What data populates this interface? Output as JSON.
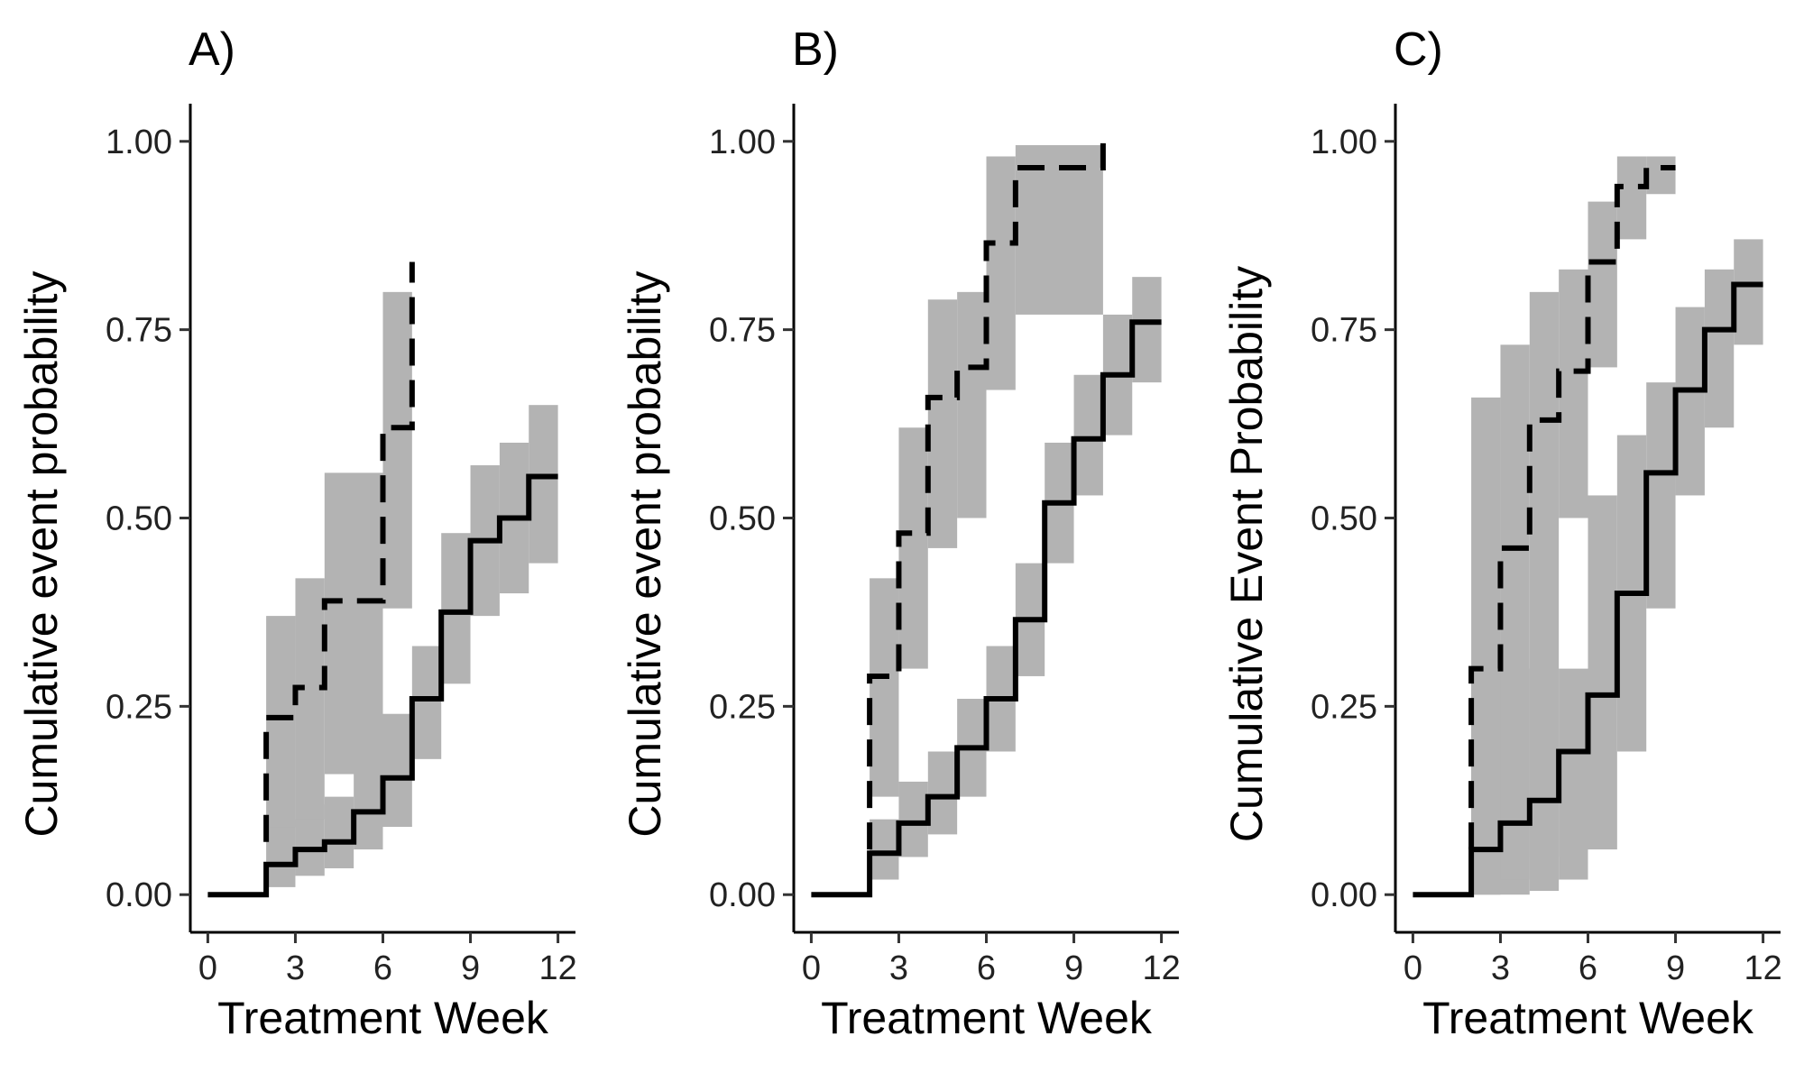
{
  "chart_data": [
    {
      "type": "step",
      "title": "A)",
      "x_label": "Treatment Week",
      "y_label": "Cumulative event probability",
      "xlim": [
        -0.6,
        12.6
      ],
      "ylim": [
        -0.05,
        1.05
      ],
      "xticks": [
        0,
        3,
        6,
        9,
        12
      ],
      "yticks": [
        {
          "value": 0,
          "label": "0.00"
        },
        {
          "value": 0.25,
          "label": "0.25"
        },
        {
          "value": 0.5,
          "label": "0.50"
        },
        {
          "value": 0.75,
          "label": "0.75"
        },
        {
          "value": 1,
          "label": "1.00"
        }
      ],
      "band_color": "#b3b3b3",
      "series": [
        {
          "color": "#000000",
          "linestyle": "solid",
          "x": [
            0,
            2,
            3,
            4,
            5,
            6,
            7,
            8,
            9,
            10,
            11,
            12
          ],
          "values": [
            0,
            0.04,
            0.06,
            0.07,
            0.11,
            0.155,
            0.26,
            0.375,
            0.47,
            0.5,
            0.555,
            0.555
          ],
          "lower": [
            0,
            0.01,
            0.025,
            0.035,
            0.06,
            0.09,
            0.18,
            0.28,
            0.37,
            0.4,
            0.44,
            0.44
          ],
          "upper": [
            0,
            0.1,
            0.12,
            0.13,
            0.18,
            0.24,
            0.33,
            0.48,
            0.57,
            0.6,
            0.65,
            0.65
          ]
        },
        {
          "color": "#000000",
          "linestyle": "dashed",
          "x": [
            2,
            2,
            3,
            4,
            6,
            7
          ],
          "values": [
            0.07,
            0.235,
            0.275,
            0.39,
            0.62,
            0.84
          ],
          "lower": [
            null,
            0.09,
            0.1,
            0.16,
            0.38,
            null
          ],
          "upper": [
            null,
            0.37,
            0.42,
            0.56,
            0.8,
            null
          ]
        }
      ]
    },
    {
      "type": "step",
      "title": "B)",
      "x_label": "Treatment Week",
      "y_label": "Cumulative event probability",
      "xlim": [
        -0.6,
        12.6
      ],
      "ylim": [
        -0.05,
        1.05
      ],
      "xticks": [
        0,
        3,
        6,
        9,
        12
      ],
      "yticks": [
        {
          "value": 0,
          "label": "0.00"
        },
        {
          "value": 0.25,
          "label": "0.25"
        },
        {
          "value": 0.5,
          "label": "0.50"
        },
        {
          "value": 0.75,
          "label": "0.75"
        },
        {
          "value": 1,
          "label": "1.00"
        }
      ],
      "band_color": "#b3b3b3",
      "series": [
        {
          "color": "#000000",
          "linestyle": "solid",
          "x": [
            0,
            2,
            3,
            4,
            5,
            6,
            7,
            8,
            9,
            10,
            11,
            12
          ],
          "values": [
            0,
            0.055,
            0.095,
            0.13,
            0.195,
            0.26,
            0.365,
            0.52,
            0.605,
            0.69,
            0.76,
            0.76
          ],
          "lower": [
            0,
            0.02,
            0.05,
            0.08,
            0.13,
            0.19,
            0.29,
            0.44,
            0.53,
            0.61,
            0.68,
            0.68
          ],
          "upper": [
            0,
            0.1,
            0.15,
            0.19,
            0.26,
            0.33,
            0.44,
            0.6,
            0.69,
            0.77,
            0.82,
            0.82
          ]
        },
        {
          "color": "#000000",
          "linestyle": "dashed",
          "x": [
            2,
            2,
            3,
            4,
            5,
            6,
            7,
            10
          ],
          "values": [
            0.06,
            0.29,
            0.48,
            0.66,
            0.7,
            0.865,
            0.965,
            1
          ],
          "lower": [
            null,
            0.13,
            0.3,
            0.46,
            0.5,
            0.67,
            0.77,
            null
          ],
          "upper": [
            null,
            0.42,
            0.62,
            0.79,
            0.8,
            0.98,
            0.995,
            null
          ]
        }
      ]
    },
    {
      "type": "step",
      "title": "C)",
      "x_label": "Treatment Week",
      "y_label": "Cumulative Event Probability",
      "xlim": [
        -0.6,
        12.6
      ],
      "ylim": [
        -0.05,
        1.05
      ],
      "xticks": [
        0,
        3,
        6,
        9,
        12
      ],
      "yticks": [
        {
          "value": 0,
          "label": "0.00"
        },
        {
          "value": 0.25,
          "label": "0.25"
        },
        {
          "value": 0.5,
          "label": "0.50"
        },
        {
          "value": 0.75,
          "label": "0.75"
        },
        {
          "value": 1,
          "label": "1.00"
        }
      ],
      "band_color": "#b3b3b3",
      "series": [
        {
          "color": "#000000",
          "linestyle": "solid",
          "x": [
            0,
            2,
            3,
            4,
            5,
            6,
            7,
            8,
            9,
            10,
            11,
            12
          ],
          "values": [
            0,
            0.06,
            0.095,
            0.125,
            0.19,
            0.265,
            0.4,
            0.56,
            0.67,
            0.75,
            0.81,
            0.81
          ],
          "lower": [
            0,
            0,
            0,
            0.005,
            0.02,
            0.06,
            0.19,
            0.38,
            0.53,
            0.62,
            0.73,
            0.73
          ],
          "upper": [
            0,
            0.3,
            0.3,
            0.3,
            0.3,
            0.53,
            0.61,
            0.68,
            0.78,
            0.83,
            0.87,
            0.87
          ]
        },
        {
          "color": "#000000",
          "linestyle": "dashed",
          "x": [
            2,
            2,
            3,
            4,
            5,
            6,
            7,
            8,
            9
          ],
          "values": [
            0.06,
            0.3,
            0.46,
            0.63,
            0.695,
            0.84,
            0.94,
            0.965,
            0.965
          ],
          "lower": [
            null,
            0,
            0.02,
            0.05,
            0.5,
            0.7,
            0.87,
            0.93,
            null
          ],
          "upper": [
            null,
            0.66,
            0.73,
            0.8,
            0.83,
            0.92,
            0.98,
            0.98,
            null
          ]
        }
      ]
    }
  ]
}
